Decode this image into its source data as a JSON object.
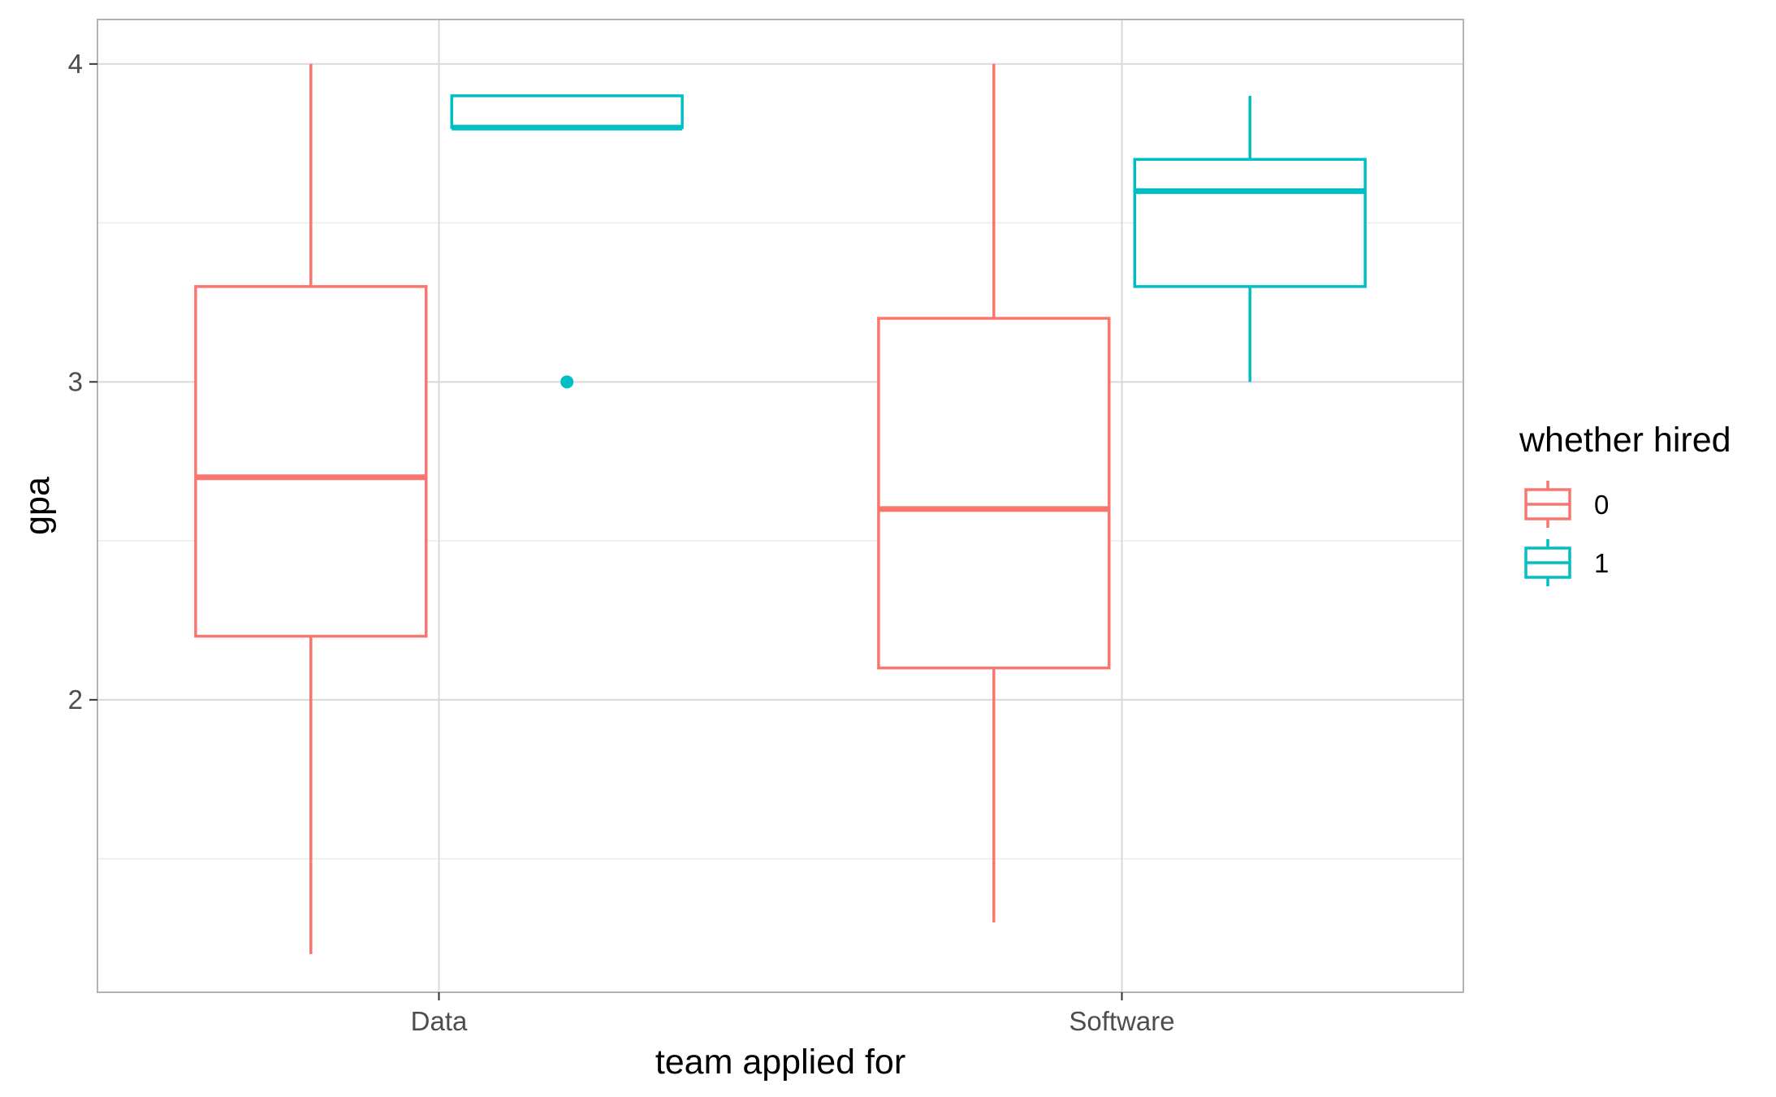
{
  "chart_data": {
    "type": "boxplot",
    "xlabel": "team applied for",
    "ylabel": "gpa",
    "categories": [
      "Data",
      "Software"
    ],
    "ylim": [
      1.08,
      4.14
    ],
    "yticks": [
      2,
      3,
      4
    ],
    "yticks_labels": [
      "2",
      "3",
      "4"
    ],
    "grid": true,
    "legend": {
      "title": "whether hired",
      "placement": "right"
    },
    "series": [
      {
        "name": "0",
        "color": "#F8766D",
        "boxes": [
          {
            "category": "Data",
            "min": 1.2,
            "q1": 2.2,
            "median": 2.7,
            "q3": 3.3,
            "max": 4.0,
            "outliers": []
          },
          {
            "category": "Software",
            "min": 1.3,
            "q1": 2.1,
            "median": 2.6,
            "q3": 3.2,
            "max": 4.0,
            "outliers": []
          }
        ]
      },
      {
        "name": "1",
        "color": "#00BFC4",
        "boxes": [
          {
            "category": "Data",
            "min": 3.8,
            "q1": 3.8,
            "median": 3.8,
            "q3": 3.9,
            "max": 3.9,
            "outliers": [
              3.0
            ]
          },
          {
            "category": "Software",
            "min": 3.0,
            "q1": 3.3,
            "median": 3.6,
            "q3": 3.7,
            "max": 3.9,
            "outliers": []
          }
        ]
      }
    ]
  }
}
